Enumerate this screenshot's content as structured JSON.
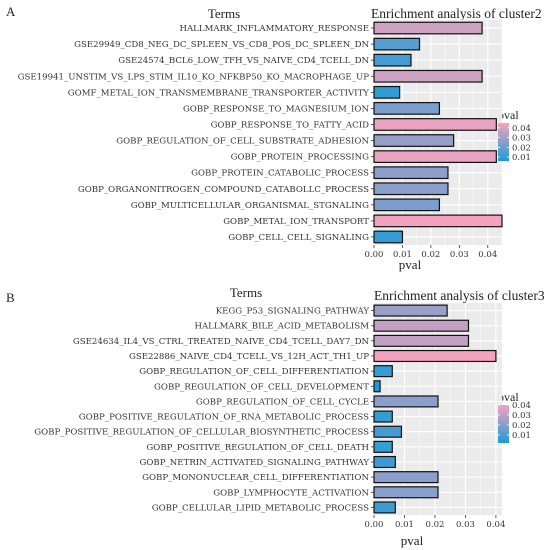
{
  "chart_data": [
    {
      "panel": "A",
      "type": "bar",
      "orientation": "horizontal",
      "title": "Enrichment analysis of cluster2",
      "terms_heading": "Terms",
      "xlabel": "pval",
      "xlim": [
        0,
        0.045
      ],
      "xticks": [
        "0.00",
        "0.01",
        "0.02",
        "0.03",
        "0.04"
      ],
      "grid": true,
      "legend": {
        "title": "pval",
        "ticks": [
          "0.04",
          "0.03",
          "0.02",
          "0.01"
        ],
        "range": [
          0.006,
          0.045
        ],
        "placement": "right"
      },
      "color_low": "#1f9bd7",
      "color_high": "#f4a2bf",
      "categories": [
        "HALLMARK_INFLAMMATORY_RESPONSE",
        "GSE29949_CD8_NEG_DC_SPLEEN_VS_CD8_POS_DC_SPLEEN_DN",
        "GSE24574_BCL6_LOW_TFH_VS_NAIVE_CD4_TCELL_DN",
        "GSE19941_UNSTIM_VS_LPS_STIM_IL10_KO_NFKBP50_KO_MACROPHAGE_UP",
        "GOMF_METAL_ION_TRANSMEMBRANE_TRANSPORTER_ACTIVITY",
        "GOBP_RESPONSE_TO_MAGNESIUM_ION",
        "GOBP_RESPONSE_TO_FATTY_ACID",
        "GOBP_REGULATION_OF_CELL_SUBSTRATE_ADHESION",
        "GOBP_PROTEIN_PROCESSING",
        "GOBP_PROTEIN_CATABOLIC_PROCESS",
        "GOBP_ORGANONITROGEN_COMPOUND_CATABOLLC_PROCESS",
        "GOBP_MULTICELLULAR_ORGANISMAL_STGNALING",
        "GOBP_METAL_ION_TRANSPORT",
        "GOBP_CELL_CELL_SIGNALING"
      ],
      "values": [
        0.038,
        0.016,
        0.013,
        0.038,
        0.009,
        0.023,
        0.043,
        0.028,
        0.043,
        0.026,
        0.026,
        0.023,
        0.045,
        0.01
      ]
    },
    {
      "panel": "B",
      "type": "bar",
      "orientation": "horizontal",
      "title": "Enrichment analysis of cluster3",
      "terms_heading": "Terms",
      "xlabel": "pval",
      "xlim": [
        0,
        0.042
      ],
      "xticks": [
        "0.00",
        "0.01",
        "0.02",
        "0.03",
        "0.04"
      ],
      "grid": true,
      "legend": {
        "title": "pval",
        "ticks": [
          "0.04",
          "0.03",
          "0.02",
          "0.01"
        ],
        "range": [
          0.002,
          0.04
        ],
        "placement": "right"
      },
      "color_low": "#1f9bd7",
      "color_high": "#f4a2bf",
      "categories": [
        "KEGG_P53_SIGNALING_PATHWAY",
        "HALLMARK_BILE_ACID_METABOLISM",
        "GSE24634_IL4_VS_CTRL_TREATED_NAIVE_CD4_TCELL_DAY7_DN",
        "GSE22886_NAIVE_CD4_TCELL_VS_12H_ACT_TH1_UP",
        "GOBP_REGULATION_OF_CELL_DIFFERENTIATION",
        "GOBP_REGULATION_OF_CELL_DEVELOPMENT",
        "GOBP_REGULATION_OF_CELL_CYCLE",
        "GOBP_POSITIVE_REGULATION_OF_RNA_METABOLIC_PROCESS",
        "GOBP_POSITIVE_REGULATION_OF_CELLULAR_BIOSYNTHETIC_PROCESS",
        "GOBP_POSITIVE_REGULATION_OF_CELL_DEATH",
        "GOBP_NETRIN_ACTIVATED_SIGNALING_PATHWAY",
        "GOBP_MONONUCLEAR_CELL_DIFFERENTIATION",
        "GOBP_LYMPHOCYTE_ACTIVATION",
        "GOBP_CELLULAR_LIPID_METABOLIC_PROCESS"
      ],
      "values": [
        0.024,
        0.031,
        0.031,
        0.04,
        0.006,
        0.002,
        0.021,
        0.006,
        0.009,
        0.006,
        0.007,
        0.021,
        0.021,
        0.007
      ]
    }
  ]
}
